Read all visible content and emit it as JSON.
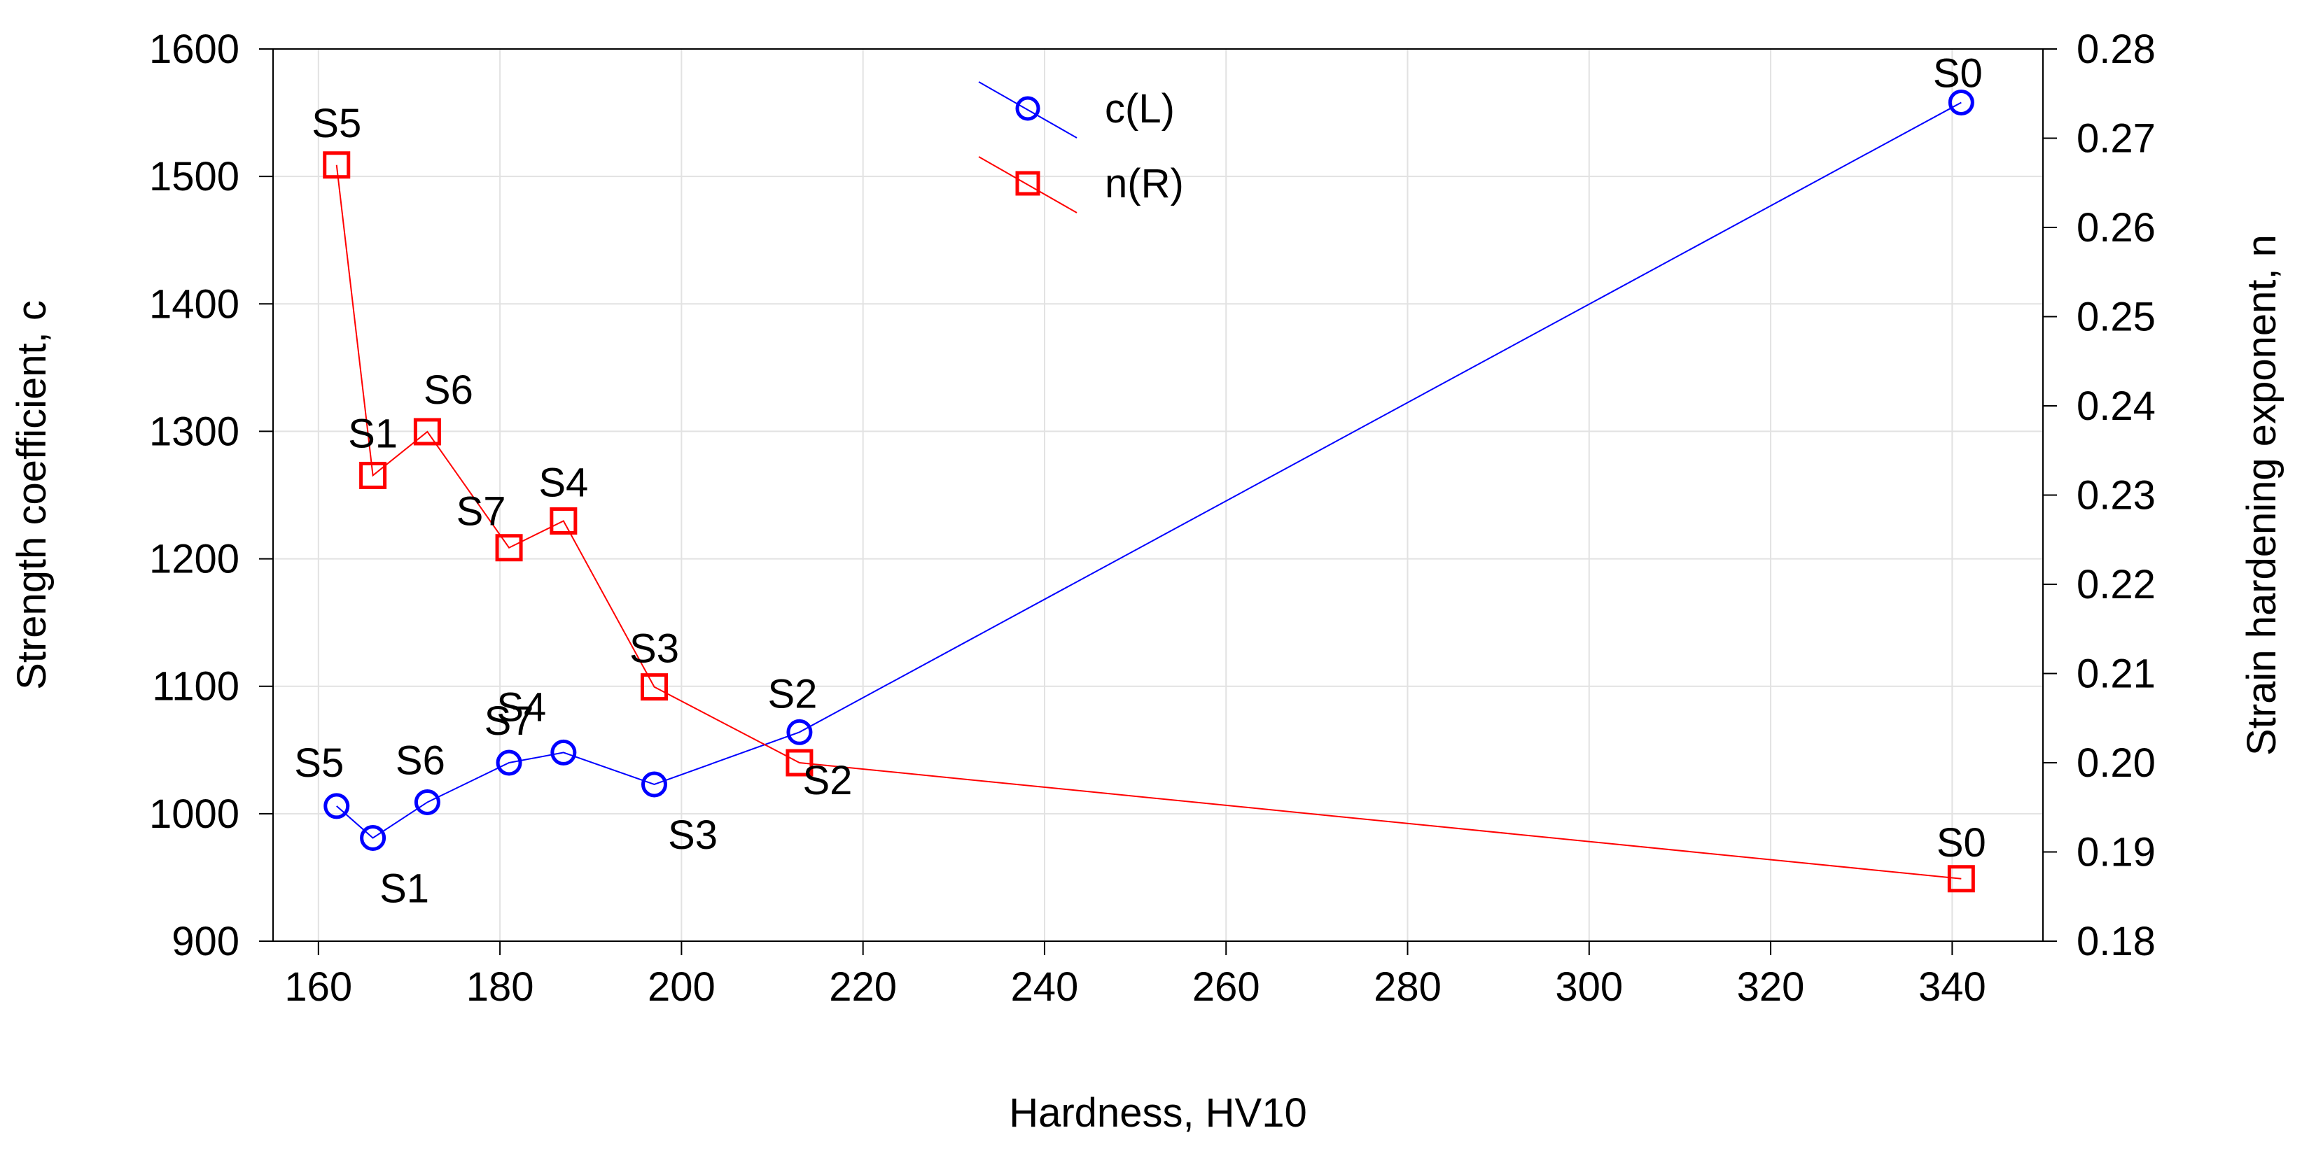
{
  "chart_data": {
    "type": "line",
    "title": "",
    "xlabel": "Hardness, HV10",
    "ylabel_left": "Strength coefficient, c",
    "ylabel_right": "Strain hardening exponent, n",
    "xlim": [
      155,
      350
    ],
    "ylim_left": [
      900,
      1600
    ],
    "ylim_right": [
      0.18,
      0.28
    ],
    "x_ticks": [
      160,
      180,
      200,
      220,
      240,
      260,
      280,
      300,
      320,
      340
    ],
    "y_left_ticks": [
      900,
      1000,
      1100,
      1200,
      1300,
      1400,
      1500,
      1600
    ],
    "y_right_ticks": [
      "0.18",
      "0.19",
      "0.20",
      "0.21",
      "0.22",
      "0.23",
      "0.24",
      "0.25",
      "0.26",
      "0.27",
      "0.28"
    ],
    "grid": true,
    "legend_position": "top-center",
    "colors": {
      "c": "#0000ff",
      "n": "#ff0000"
    },
    "series": [
      {
        "name": "c(L)",
        "axis": "left",
        "marker": "circle",
        "points": [
          {
            "label": "S5",
            "x": 162,
            "y": 1006
          },
          {
            "label": "S1",
            "x": 166,
            "y": 981
          },
          {
            "label": "S6",
            "x": 172,
            "y": 1009
          },
          {
            "label": "S7",
            "x": 181,
            "y": 1040
          },
          {
            "label": "S4",
            "x": 187,
            "y": 1048
          },
          {
            "label": "S3",
            "x": 197,
            "y": 1023
          },
          {
            "label": "S2",
            "x": 213,
            "y": 1064
          },
          {
            "label": "S0",
            "x": 341,
            "y": 1558
          }
        ]
      },
      {
        "name": "n(R)",
        "axis": "right",
        "marker": "square",
        "points": [
          {
            "label": "S5",
            "x": 162,
            "y": 0.267
          },
          {
            "label": "S1",
            "x": 166,
            "y": 0.2322
          },
          {
            "label": "S6",
            "x": 172,
            "y": 0.2371
          },
          {
            "label": "S7",
            "x": 181,
            "y": 0.2241
          },
          {
            "label": "S4",
            "x": 187,
            "y": 0.2271
          },
          {
            "label": "S3",
            "x": 197,
            "y": 0.2085
          },
          {
            "label": "S2",
            "x": 213,
            "y": 0.2
          },
          {
            "label": "S0",
            "x": 341,
            "y": 0.187
          }
        ]
      }
    ]
  }
}
